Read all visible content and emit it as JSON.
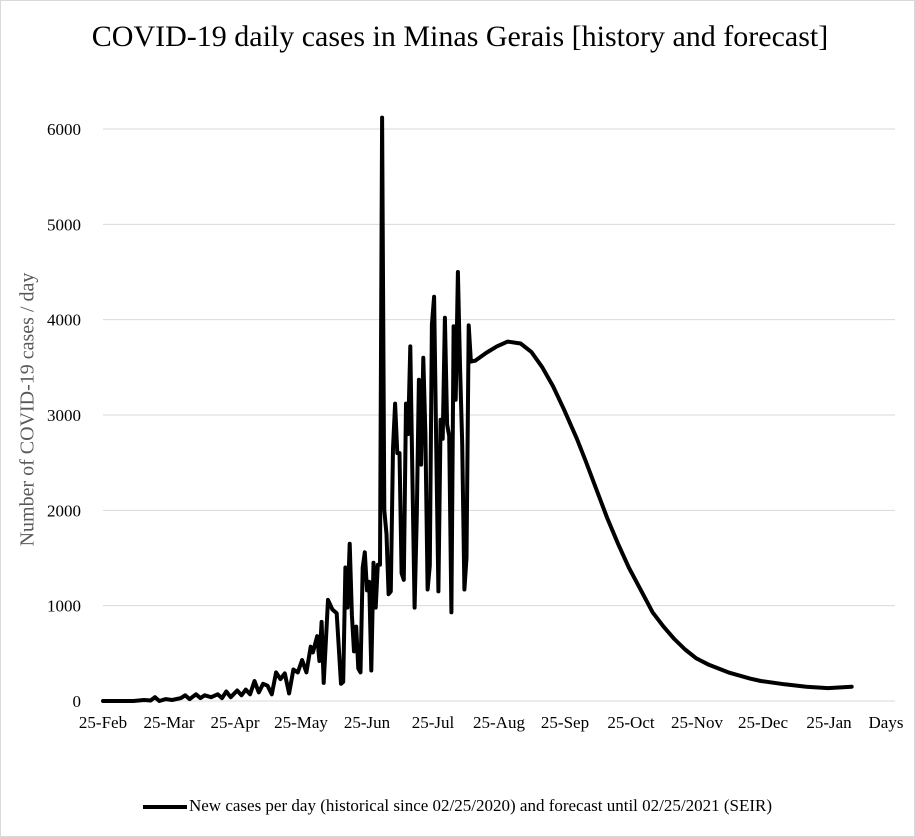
{
  "chart_data": {
    "type": "line",
    "title": "COVID-19 daily cases in Minas Gerais [history and forecast]",
    "xlabel": "Days",
    "ylabel": "Number of COVID-19 cases / day",
    "x_ticks": [
      "25-Feb",
      "25-Mar",
      "25-Apr",
      "25-May",
      "25-Jun",
      "25-Jul",
      "25-Aug",
      "25-Sep",
      "25-Oct",
      "25-Nov",
      "25-Dec",
      "25-Jan"
    ],
    "y_ticks": [
      0,
      1000,
      2000,
      3000,
      4000,
      5000,
      6000
    ],
    "ylim": [
      0,
      6000
    ],
    "grid": "horizontal",
    "legend_position": "bottom",
    "series": [
      {
        "name": "New cases per day (historical since 02/25/2020) and forecast until 02/25/2021 (SEIR)",
        "color": "#000000",
        "points": [
          [
            "2020-02-25",
            0
          ],
          [
            "2020-03-10",
            0
          ],
          [
            "2020-03-15",
            10
          ],
          [
            "2020-03-18",
            5
          ],
          [
            "2020-03-20",
            40
          ],
          [
            "2020-03-22",
            0
          ],
          [
            "2020-03-25",
            20
          ],
          [
            "2020-03-28",
            10
          ],
          [
            "2020-04-01",
            30
          ],
          [
            "2020-04-03",
            60
          ],
          [
            "2020-04-05",
            20
          ],
          [
            "2020-04-08",
            70
          ],
          [
            "2020-04-10",
            30
          ],
          [
            "2020-04-12",
            60
          ],
          [
            "2020-04-15",
            40
          ],
          [
            "2020-04-18",
            70
          ],
          [
            "2020-04-20",
            30
          ],
          [
            "2020-04-22",
            100
          ],
          [
            "2020-04-24",
            40
          ],
          [
            "2020-04-27",
            110
          ],
          [
            "2020-04-29",
            60
          ],
          [
            "2020-05-01",
            120
          ],
          [
            "2020-05-03",
            70
          ],
          [
            "2020-05-05",
            210
          ],
          [
            "2020-05-07",
            90
          ],
          [
            "2020-05-09",
            180
          ],
          [
            "2020-05-11",
            160
          ],
          [
            "2020-05-13",
            70
          ],
          [
            "2020-05-15",
            300
          ],
          [
            "2020-05-17",
            230
          ],
          [
            "2020-05-19",
            290
          ],
          [
            "2020-05-21",
            80
          ],
          [
            "2020-05-23",
            330
          ],
          [
            "2020-05-25",
            300
          ],
          [
            "2020-05-27",
            430
          ],
          [
            "2020-05-29",
            300
          ],
          [
            "2020-05-31",
            570
          ],
          [
            "2020-06-01",
            510
          ],
          [
            "2020-06-03",
            680
          ],
          [
            "2020-06-04",
            420
          ],
          [
            "2020-06-05",
            830
          ],
          [
            "2020-06-06",
            190
          ],
          [
            "2020-06-08",
            1060
          ],
          [
            "2020-06-10",
            960
          ],
          [
            "2020-06-12",
            920
          ],
          [
            "2020-06-14",
            180
          ],
          [
            "2020-06-15",
            200
          ],
          [
            "2020-06-16",
            1400
          ],
          [
            "2020-06-17",
            980
          ],
          [
            "2020-06-18",
            1650
          ],
          [
            "2020-06-19",
            900
          ],
          [
            "2020-06-20",
            520
          ],
          [
            "2020-06-21",
            780
          ],
          [
            "2020-06-22",
            340
          ],
          [
            "2020-06-23",
            300
          ],
          [
            "2020-06-24",
            1400
          ],
          [
            "2020-06-25",
            1560
          ],
          [
            "2020-06-26",
            1160
          ],
          [
            "2020-06-27",
            1250
          ],
          [
            "2020-06-28",
            320
          ],
          [
            "2020-06-29",
            1450
          ],
          [
            "2020-06-30",
            980
          ],
          [
            "2020-07-01",
            1430
          ],
          [
            "2020-07-02",
            1430
          ],
          [
            "2020-07-03",
            6120
          ],
          [
            "2020-07-04",
            2000
          ],
          [
            "2020-07-05",
            1750
          ],
          [
            "2020-07-06",
            1120
          ],
          [
            "2020-07-07",
            1150
          ],
          [
            "2020-07-08",
            2650
          ],
          [
            "2020-07-09",
            3120
          ],
          [
            "2020-07-10",
            2600
          ],
          [
            "2020-07-11",
            2600
          ],
          [
            "2020-07-12",
            1340
          ],
          [
            "2020-07-13",
            1270
          ],
          [
            "2020-07-14",
            3120
          ],
          [
            "2020-07-15",
            2800
          ],
          [
            "2020-07-16",
            3720
          ],
          [
            "2020-07-17",
            2350
          ],
          [
            "2020-07-18",
            980
          ],
          [
            "2020-07-19",
            1950
          ],
          [
            "2020-07-20",
            3370
          ],
          [
            "2020-07-21",
            2480
          ],
          [
            "2020-07-22",
            3600
          ],
          [
            "2020-07-23",
            2800
          ],
          [
            "2020-07-24",
            1170
          ],
          [
            "2020-07-25",
            1420
          ],
          [
            "2020-07-26",
            3950
          ],
          [
            "2020-07-27",
            4240
          ],
          [
            "2020-07-28",
            2700
          ],
          [
            "2020-07-29",
            1150
          ],
          [
            "2020-07-30",
            2950
          ],
          [
            "2020-07-31",
            2750
          ],
          [
            "2020-08-01",
            4020
          ],
          [
            "2020-08-02",
            2900
          ],
          [
            "2020-08-03",
            2780
          ],
          [
            "2020-08-04",
            930
          ],
          [
            "2020-08-05",
            3930
          ],
          [
            "2020-08-06",
            3160
          ],
          [
            "2020-08-07",
            4500
          ],
          [
            "2020-08-08",
            3520
          ],
          [
            "2020-08-09",
            2700
          ],
          [
            "2020-08-10",
            1170
          ],
          [
            "2020-08-11",
            1500
          ],
          [
            "2020-08-12",
            3940
          ],
          [
            "2020-08-13",
            3560
          ],
          [
            "2020-08-15",
            3570
          ],
          [
            "2020-08-20",
            3650
          ],
          [
            "2020-08-25",
            3720
          ],
          [
            "2020-08-30",
            3770
          ],
          [
            "2020-09-05",
            3750
          ],
          [
            "2020-09-10",
            3660
          ],
          [
            "2020-09-15",
            3500
          ],
          [
            "2020-09-20",
            3300
          ],
          [
            "2020-09-25",
            3060
          ],
          [
            "2020-10-01",
            2750
          ],
          [
            "2020-10-05",
            2520
          ],
          [
            "2020-10-10",
            2220
          ],
          [
            "2020-10-15",
            1920
          ],
          [
            "2020-10-20",
            1650
          ],
          [
            "2020-10-25",
            1400
          ],
          [
            "2020-11-01",
            1100
          ],
          [
            "2020-11-05",
            930
          ],
          [
            "2020-11-10",
            780
          ],
          [
            "2020-11-15",
            650
          ],
          [
            "2020-11-20",
            540
          ],
          [
            "2020-11-25",
            450
          ],
          [
            "2020-12-01",
            380
          ],
          [
            "2020-12-10",
            300
          ],
          [
            "2020-12-20",
            235
          ],
          [
            "2020-12-25",
            210
          ],
          [
            "2021-01-05",
            175
          ],
          [
            "2021-01-15",
            150
          ],
          [
            "2021-01-25",
            135
          ],
          [
            "2021-02-05",
            150
          ]
        ]
      }
    ]
  }
}
